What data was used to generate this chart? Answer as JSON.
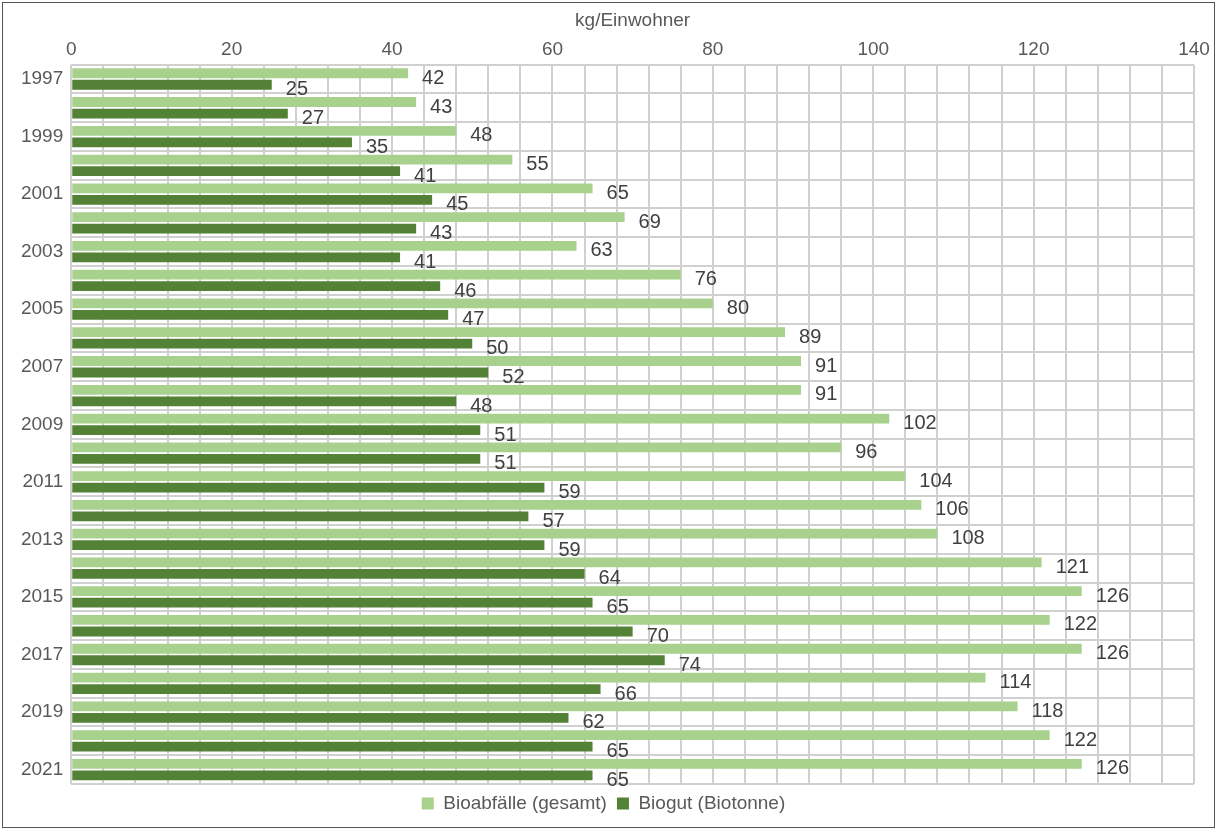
{
  "chart_data": {
    "type": "bar",
    "orientation": "horizontal",
    "xlabel": "kg/Einwohner",
    "categories": [
      "1997",
      null,
      "1999",
      null,
      "2001",
      null,
      "2003",
      null,
      "2005",
      null,
      "2007",
      null,
      "2009",
      null,
      "2011",
      null,
      "2013",
      null,
      "2015",
      null,
      "2017",
      null,
      "2019",
      null,
      "2021"
    ],
    "series": [
      {
        "name": "Bioabfälle (gesamt)",
        "color": "#a9d18e",
        "values": [
          42,
          43,
          48,
          55,
          65,
          69,
          63,
          76,
          80,
          89,
          91,
          91,
          102,
          96,
          104,
          106,
          108,
          121,
          126,
          122,
          126,
          114,
          118,
          122,
          126
        ]
      },
      {
        "name": "Biogut (Biotonne)",
        "color": "#538135",
        "values": [
          25,
          27,
          35,
          41,
          45,
          43,
          41,
          46,
          47,
          50,
          52,
          48,
          51,
          51,
          59,
          57,
          59,
          64,
          65,
          70,
          74,
          66,
          62,
          65,
          65
        ]
      }
    ],
    "xlim": [
      0,
      140
    ],
    "xticks": [
      0,
      {
        "value": 4,
        "label": null
      },
      {
        "value": 8,
        "label": null
      },
      {
        "value": 12,
        "label": null
      },
      {
        "value": 16,
        "label": null
      },
      20,
      {
        "value": 24,
        "label": null
      },
      {
        "value": 28,
        "label": null
      },
      {
        "value": 32,
        "label": null
      },
      {
        "value": 36,
        "label": null
      },
      40,
      {
        "value": 44,
        "label": null
      },
      {
        "value": 48,
        "label": null
      },
      {
        "value": 52,
        "label": null
      },
      {
        "value": 56,
        "label": null
      },
      60,
      {
        "value": 64,
        "label": null
      },
      {
        "value": 68,
        "label": null
      },
      {
        "value": 72,
        "label": null
      },
      {
        "value": 76,
        "label": null
      },
      80,
      {
        "value": 84,
        "label": null
      },
      {
        "value": 88,
        "label": null
      },
      {
        "value": 92,
        "label": null
      },
      {
        "value": 96,
        "label": null
      },
      100,
      {
        "value": 104,
        "label": null
      },
      {
        "value": 108,
        "label": null
      },
      {
        "value": 112,
        "label": null
      },
      {
        "value": 116,
        "label": null
      },
      120,
      {
        "value": 124,
        "label": null
      },
      {
        "value": 128,
        "label": null
      },
      {
        "value": 132,
        "label": null
      },
      {
        "value": 136,
        "label": null
      },
      140
    ],
    "grid": true,
    "legend": "bottom",
    "data_labels": true
  }
}
